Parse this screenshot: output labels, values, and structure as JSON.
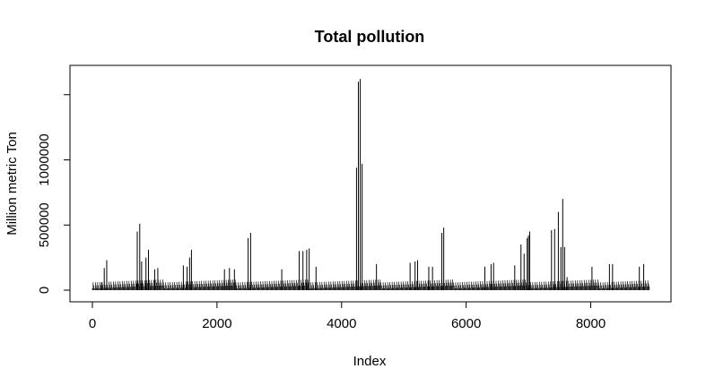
{
  "chart_data": {
    "type": "bar",
    "title": "Total pollution",
    "xlabel": "Index",
    "ylabel": "Million metric Ton",
    "xlim": [
      0,
      9000
    ],
    "ylim": [
      0,
      1600000
    ],
    "x_ticks": [
      0,
      2000,
      4000,
      6000,
      8000
    ],
    "y_ticks": [
      0,
      500000,
      1000000
    ],
    "x_tick_labels": [
      "0",
      "2000",
      "4000",
      "6000",
      "8000"
    ],
    "y_tick_labels": [
      "0",
      "500000",
      "1000000"
    ],
    "grid": false,
    "bar_color": "#000000",
    "series": [
      {
        "x": [
          150,
          190,
          230,
          720,
          760,
          790,
          860,
          900,
          1000,
          1050,
          1460,
          1520,
          1560,
          1590,
          2120,
          2200,
          2280,
          2500,
          2540,
          3040,
          3320,
          3380,
          3440,
          3480,
          3590,
          4240,
          4270,
          4300,
          4330,
          4560,
          5100,
          5180,
          5220,
          5400,
          5460,
          5610,
          5640,
          6300,
          6400,
          6440,
          6780,
          6880,
          6930,
          6980,
          7000,
          7020,
          7370,
          7420,
          7480,
          7520,
          7550,
          7580,
          7620,
          8020,
          8300,
          8350,
          8780,
          8850
        ],
        "values": [
          60000,
          170000,
          230000,
          450000,
          510000,
          220000,
          250000,
          310000,
          160000,
          170000,
          190000,
          180000,
          250000,
          310000,
          160000,
          170000,
          160000,
          400000,
          440000,
          160000,
          300000,
          300000,
          310000,
          320000,
          180000,
          940000,
          1600000,
          1620000,
          970000,
          200000,
          210000,
          220000,
          230000,
          180000,
          180000,
          440000,
          480000,
          180000,
          200000,
          210000,
          190000,
          350000,
          280000,
          400000,
          420000,
          450000,
          460000,
          470000,
          600000,
          330000,
          700000,
          330000,
          100000,
          180000,
          200000,
          200000,
          180000,
          200000
        ]
      }
    ]
  }
}
